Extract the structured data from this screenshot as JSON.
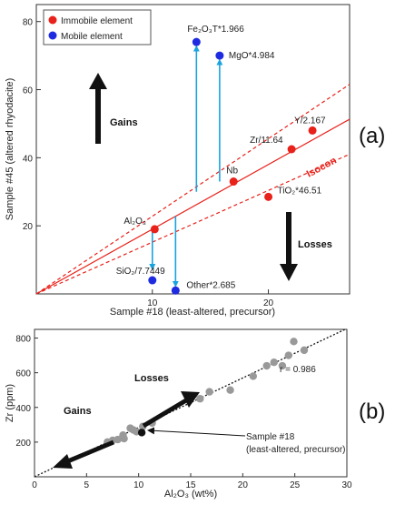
{
  "chart_data": [
    {
      "type": "scatter",
      "panel_label": "(a)",
      "title": "",
      "xlabel": "Sample #18 (least-altered, precursor)",
      "ylabel": "Sample #45 (altered rhyodacite)",
      "xlim": [
        0,
        27
      ],
      "ylim": [
        0,
        85
      ],
      "xticks": [
        10,
        20
      ],
      "yticks": [
        20,
        40,
        60,
        80
      ],
      "grid": false,
      "legend": {
        "placement": "top-left",
        "entries": [
          {
            "label": "Immobile element",
            "color": "#e8211a"
          },
          {
            "label": "Mobile element",
            "color": "#1f2be0"
          }
        ]
      },
      "series": [
        {
          "name": "Immobile element",
          "color": "#e8211a",
          "points": [
            {
              "label": "Al₂O₃",
              "x": 10.2,
              "y": 19
            },
            {
              "label": "Nb",
              "x": 17,
              "y": 33
            },
            {
              "label": "Zr/11.64",
              "x": 22,
              "y": 42.5
            },
            {
              "label": "Y/2.167",
              "x": 23.8,
              "y": 48
            },
            {
              "label": "TiO₂*46.51",
              "x": 20,
              "y": 28.5
            }
          ]
        },
        {
          "name": "Mobile element",
          "color": "#1f2be0",
          "points": [
            {
              "label": "Fe₂O₃T*1.966",
              "x": 13.8,
              "y": 74
            },
            {
              "label": "MgO*4.984",
              "x": 15.8,
              "y": 70
            },
            {
              "label": "SiO₂/7.7449",
              "x": 10,
              "y": 4
            },
            {
              "label": "Other*2.685",
              "x": 12,
              "y": 1
            }
          ]
        }
      ],
      "isocon": {
        "label": "Isocon",
        "slope": 1.9,
        "band": 0.2,
        "color": "#e8211a"
      },
      "gain_loss_arrows": [
        {
          "from": [
            13.8,
            30
          ],
          "to": [
            13.8,
            74
          ]
        },
        {
          "from": [
            15.8,
            33
          ],
          "to": [
            15.8,
            70
          ]
        },
        {
          "from": [
            10,
            19
          ],
          "to": [
            10,
            6
          ]
        },
        {
          "from": [
            12,
            22.8
          ],
          "to": [
            12,
            1
          ]
        }
      ],
      "annotations": {
        "gains": "Gains",
        "losses": "Losses"
      }
    },
    {
      "type": "scatter",
      "panel_label": "(b)",
      "title": "",
      "xlabel": "Al₂O₃ (wt%)",
      "ylabel": "Zr (ppm)",
      "xlim": [
        0,
        30
      ],
      "ylim": [
        0,
        850
      ],
      "xticks": [
        0,
        5,
        10,
        15,
        20,
        25,
        30
      ],
      "yticks": [
        200,
        400,
        600,
        800
      ],
      "grid": false,
      "points": [
        {
          "x": 7.0,
          "y": 200
        },
        {
          "x": 7.5,
          "y": 210
        },
        {
          "x": 8.0,
          "y": 215
        },
        {
          "x": 8.5,
          "y": 240
        },
        {
          "x": 8.6,
          "y": 220
        },
        {
          "x": 9.2,
          "y": 280
        },
        {
          "x": 9.5,
          "y": 270
        },
        {
          "x": 9.8,
          "y": 260
        },
        {
          "x": 10.4,
          "y": 290
        },
        {
          "x": 11.3,
          "y": 310
        },
        {
          "x": 15.9,
          "y": 450
        },
        {
          "x": 16.8,
          "y": 490
        },
        {
          "x": 18.8,
          "y": 500
        },
        {
          "x": 21.0,
          "y": 580
        },
        {
          "x": 22.3,
          "y": 640
        },
        {
          "x": 23.0,
          "y": 660
        },
        {
          "x": 23.8,
          "y": 640
        },
        {
          "x": 24.4,
          "y": 700
        },
        {
          "x": 24.9,
          "y": 780
        },
        {
          "x": 25.9,
          "y": 730
        }
      ],
      "highlight_point": {
        "x": 10.3,
        "y": 255,
        "label": "Sample #18\n(least-altered, precursor)"
      },
      "trend_line": {
        "slope": 28.5,
        "intercept": 0,
        "r_label": "r = 0.986"
      },
      "annotations": {
        "gains": "Gains",
        "losses": "Losses"
      }
    }
  ]
}
